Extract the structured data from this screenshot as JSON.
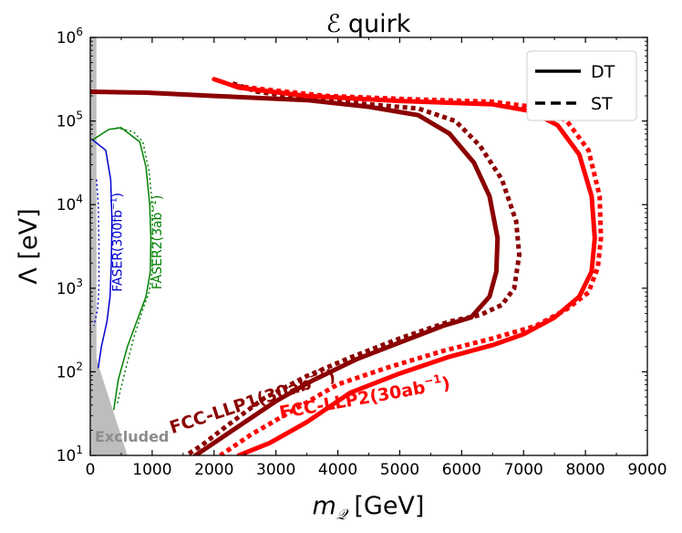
{
  "chart_data": {
    "type": "line",
    "title_main": "quirk",
    "title_symbol": "ℰ",
    "xlabel_symbol": "m",
    "xlabel_sub": "𝒬",
    "xlabel_unit": "[GeV]",
    "ylabel": "Λ [eV]",
    "xlim": [
      0,
      9000
    ],
    "ylim_log10": [
      1,
      6
    ],
    "x_ticks": [
      0,
      1000,
      2000,
      3000,
      4000,
      5000,
      6000,
      7000,
      8000,
      9000
    ],
    "x_tick_labels": [
      "0",
      "1000",
      "2000",
      "3000",
      "4000",
      "5000",
      "6000",
      "7000",
      "8000",
      "9000"
    ],
    "y_ticks": [
      {
        "exp": 1,
        "base": "10",
        "sup": "1"
      },
      {
        "exp": 2,
        "base": "10",
        "sup": "2"
      },
      {
        "exp": 3,
        "base": "10",
        "sup": "3"
      },
      {
        "exp": 4,
        "base": "10",
        "sup": "4"
      },
      {
        "exp": 5,
        "base": "10",
        "sup": "5"
      },
      {
        "exp": 6,
        "base": "10",
        "sup": "6"
      }
    ],
    "legend": {
      "placement": "top-right",
      "entries": [
        {
          "label": "DT",
          "style": "solid"
        },
        {
          "label": "ST",
          "style": "dashed"
        }
      ]
    },
    "excluded": {
      "label": "Excluded",
      "color": "#bdbdbd",
      "band": {
        "x": [
          0,
          100
        ],
        "log10_y": [
          1,
          6
        ]
      },
      "triangle": [
        [
          0,
          2.25
        ],
        [
          0,
          1
        ],
        [
          600,
          1
        ],
        [
          80,
          2.2
        ]
      ]
    },
    "series": [
      {
        "name": "FCC-LLP1 DT",
        "color": "#8b0000",
        "style": "solid",
        "width": 5,
        "points": [
          [
            0,
            5.35
          ],
          [
            900,
            5.34
          ],
          [
            2000,
            5.3
          ],
          [
            3500,
            5.25
          ],
          [
            4500,
            5.17
          ],
          [
            5300,
            5.07
          ],
          [
            5800,
            4.85
          ],
          [
            6200,
            4.5
          ],
          [
            6450,
            4.1
          ],
          [
            6580,
            3.6
          ],
          [
            6560,
            3.2
          ],
          [
            6450,
            2.9
          ],
          [
            6150,
            2.65
          ],
          [
            5700,
            2.55
          ],
          [
            5000,
            2.35
          ],
          [
            4300,
            2.15
          ],
          [
            3600,
            1.9
          ],
          [
            3000,
            1.65
          ],
          [
            2400,
            1.35
          ],
          [
            1900,
            1.1
          ],
          [
            1700,
            1.0
          ]
        ]
      },
      {
        "name": "FCC-LLP1 ST",
        "color": "#8b0000",
        "style": "dotted",
        "width": 5,
        "points": [
          [
            2300,
            5.45
          ],
          [
            2700,
            5.35
          ],
          [
            3500,
            5.27
          ],
          [
            4500,
            5.2
          ],
          [
            5300,
            5.15
          ],
          [
            5900,
            5.0
          ],
          [
            6300,
            4.7
          ],
          [
            6650,
            4.3
          ],
          [
            6880,
            3.8
          ],
          [
            6930,
            3.4
          ],
          [
            6850,
            3.0
          ],
          [
            6650,
            2.8
          ],
          [
            6300,
            2.68
          ],
          [
            5800,
            2.6
          ],
          [
            5000,
            2.4
          ],
          [
            4200,
            2.17
          ],
          [
            3500,
            1.95
          ],
          [
            2800,
            1.68
          ],
          [
            2200,
            1.35
          ],
          [
            1800,
            1.12
          ],
          [
            1550,
            1.0
          ]
        ]
      },
      {
        "name": "FCC-LLP2 DT",
        "color": "#ff0000",
        "style": "solid",
        "width": 5,
        "points": [
          [
            2000,
            5.5
          ],
          [
            2400,
            5.4
          ],
          [
            3500,
            5.3
          ],
          [
            5000,
            5.24
          ],
          [
            6500,
            5.2
          ],
          [
            7100,
            5.12
          ],
          [
            7550,
            4.95
          ],
          [
            7900,
            4.6
          ],
          [
            8100,
            4.1
          ],
          [
            8150,
            3.6
          ],
          [
            8100,
            3.2
          ],
          [
            7900,
            2.9
          ],
          [
            7500,
            2.65
          ],
          [
            7000,
            2.45
          ],
          [
            6500,
            2.32
          ],
          [
            5800,
            2.18
          ],
          [
            5000,
            1.98
          ],
          [
            4200,
            1.75
          ],
          [
            3500,
            1.4
          ],
          [
            2900,
            1.15
          ],
          [
            2400,
            1.0
          ]
        ]
      },
      {
        "name": "FCC-LLP2 ST",
        "color": "#ff0000",
        "style": "dotted",
        "width": 5,
        "points": [
          [
            2350,
            5.42
          ],
          [
            2800,
            5.38
          ],
          [
            3800,
            5.3
          ],
          [
            5200,
            5.26
          ],
          [
            6500,
            5.23
          ],
          [
            7250,
            5.16
          ],
          [
            7700,
            5.0
          ],
          [
            8050,
            4.65
          ],
          [
            8230,
            4.1
          ],
          [
            8250,
            3.6
          ],
          [
            8200,
            3.25
          ],
          [
            8050,
            2.95
          ],
          [
            7700,
            2.75
          ],
          [
            7200,
            2.55
          ],
          [
            6500,
            2.4
          ],
          [
            5700,
            2.25
          ],
          [
            4800,
            2.05
          ],
          [
            4000,
            1.85
          ],
          [
            3300,
            1.55
          ],
          [
            2600,
            1.25
          ],
          [
            2100,
            1.0
          ]
        ]
      },
      {
        "name": "FASER DT",
        "color": "#0000cd",
        "style": "solid",
        "width": 1.5,
        "points": [
          [
            30,
            4.78
          ],
          [
            250,
            4.65
          ],
          [
            330,
            4.3
          ],
          [
            350,
            3.8
          ],
          [
            340,
            3.3
          ],
          [
            320,
            2.9
          ],
          [
            270,
            2.6
          ],
          [
            180,
            2.3
          ],
          [
            130,
            2.05
          ]
        ]
      },
      {
        "name": "FASER ST",
        "color": "#0000cd",
        "style": "dotted",
        "width": 1.5,
        "points": [
          [
            100,
            4.3
          ],
          [
            130,
            4.0
          ],
          [
            140,
            3.5
          ],
          [
            140,
            3.0
          ],
          [
            120,
            2.75
          ],
          [
            60,
            2.55
          ]
        ]
      },
      {
        "name": "FASER2 DT",
        "color": "#008000",
        "style": "solid",
        "width": 1.5,
        "points": [
          [
            50,
            4.78
          ],
          [
            300,
            4.9
          ],
          [
            500,
            4.92
          ],
          [
            800,
            4.75
          ],
          [
            900,
            4.45
          ],
          [
            960,
            4.0
          ],
          [
            980,
            3.6
          ],
          [
            970,
            3.2
          ],
          [
            900,
            2.9
          ],
          [
            800,
            2.7
          ],
          [
            600,
            2.3
          ],
          [
            450,
            1.9
          ],
          [
            380,
            1.55
          ]
        ]
      },
      {
        "name": "FASER2 ST",
        "color": "#008000",
        "style": "dotted",
        "width": 1.5,
        "points": [
          [
            420,
            4.92
          ],
          [
            700,
            4.87
          ],
          [
            850,
            4.75
          ],
          [
            950,
            4.4
          ],
          [
            1000,
            4.0
          ],
          [
            1010,
            3.6
          ],
          [
            1000,
            3.2
          ],
          [
            950,
            2.95
          ],
          [
            850,
            2.75
          ],
          [
            700,
            2.4
          ],
          [
            560,
            2.0
          ],
          [
            430,
            1.6
          ]
        ]
      }
    ],
    "annotations": [
      {
        "text": "FASER(300fb",
        "sup": "−1",
        "close": ")",
        "color": "#0000cd",
        "x": 510,
        "log10_y": 3.55,
        "angle": -90,
        "size": 14,
        "bold": false
      },
      {
        "text": "FASER2(3ab",
        "sup": "−1",
        "close": ")",
        "color": "#008000",
        "x": 1150,
        "log10_y": 3.55,
        "angle": -90,
        "size": 14,
        "bold": false
      },
      {
        "text": "FCC-LLP1(30ab",
        "sup": "−1",
        "close": ")",
        "color": "#8b0000",
        "x": 2650,
        "log10_y": 1.58,
        "angle": -18,
        "size": 19,
        "bold": true
      },
      {
        "text": "FCC-LLP2(30ab",
        "sup": "−1",
        "close": ")",
        "color": "#ff0000",
        "x": 4450,
        "log10_y": 1.62,
        "angle": -10,
        "size": 19,
        "bold": true
      }
    ]
  }
}
